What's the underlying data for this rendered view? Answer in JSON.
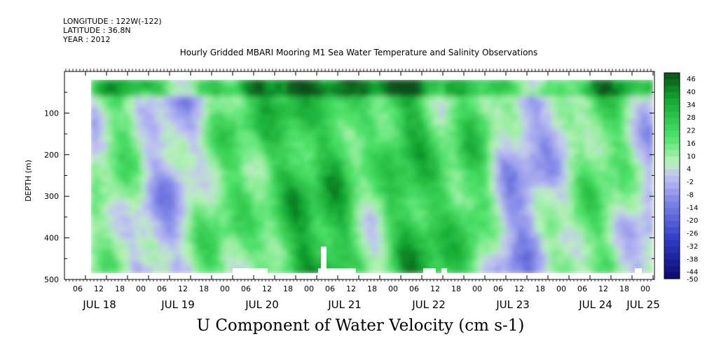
{
  "header": {
    "longitude": "LONGITUDE : 122W(-122)",
    "latitude": "LATITUDE : 36.8N",
    "year": "YEAR : 2012",
    "title": "Hourly Gridded MBARI Mooring M1 Sea Water Temperature and Salinity Observations"
  },
  "chart_data": {
    "type": "heatmap",
    "title": "U Component of Water Velocity (cm s-1)",
    "ylabel": "DEPTH (m)",
    "ylim": [
      500,
      0
    ],
    "y_ticks": [
      100,
      200,
      300,
      400,
      500
    ],
    "x_hour_ticks": [
      "06",
      "12",
      "18",
      "00",
      "06",
      "12",
      "18",
      "00",
      "06",
      "12",
      "18",
      "00",
      "06",
      "12",
      "18",
      "00",
      "06",
      "12",
      "18",
      "00",
      "06",
      "12",
      "18",
      "00",
      "06",
      "12",
      "18",
      "00"
    ],
    "x_day_labels": [
      "JUL 18",
      "JUL 19",
      "JUL 20",
      "JUL 21",
      "JUL 22",
      "JUL 23",
      "JUL 24",
      "JUL 25"
    ],
    "colorbar": {
      "labels": [
        "46",
        "40",
        "34",
        "28",
        "22",
        "16",
        "10",
        "4",
        "-2",
        "-8",
        "-14",
        "-20",
        "-26",
        "-32",
        "-38",
        "-44",
        "-50"
      ],
      "min": -50,
      "max": 46,
      "step": 3
    },
    "colors": {
      "strong_positive": "#0b4d1a",
      "positive": "#2fd34a",
      "weak_positive": "#a8f0a8",
      "weak_negative": "#b8b8f2",
      "negative": "#4d5cd6",
      "strong_negative": "#0a0a6e"
    }
  }
}
